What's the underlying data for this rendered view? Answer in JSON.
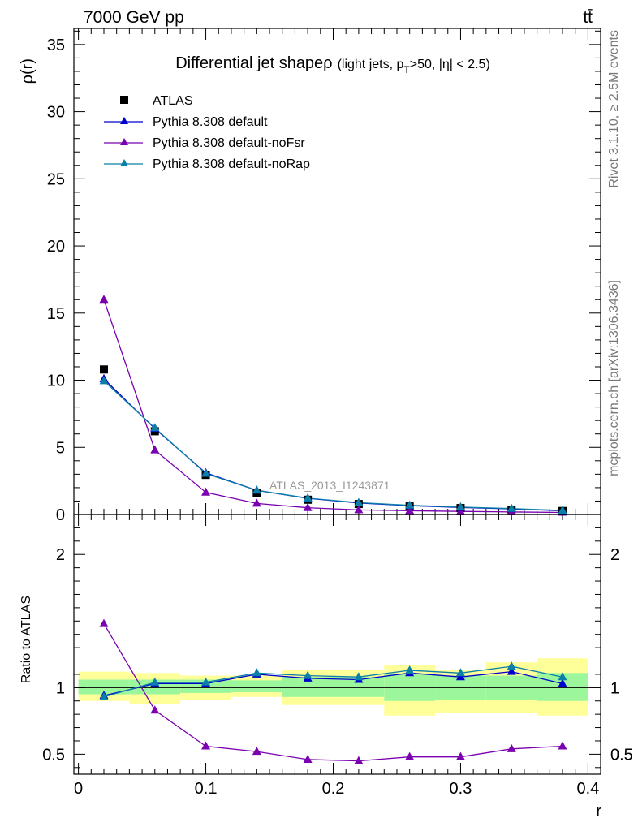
{
  "header": {
    "beam_label": "7000 GeV pp",
    "process_label": "tt̄"
  },
  "side_text": {
    "rivet": "Rivet 3.1.10, ≥ 2.5M events",
    "source": "mcplots.cern.ch [arXiv:1306.3436]"
  },
  "watermark": "ATLAS_2013_I1243871",
  "colors": {
    "atlas": "#000000",
    "default": "#0000cc",
    "noFsr": "#7a00b0",
    "noRap": "#0a7fa8",
    "band_inner": "#9cf79c",
    "band_outer": "#ffff99"
  },
  "chart_data": [
    {
      "type": "line",
      "title_main": "Differential jet shapeρ",
      "title_detail_a": "(light jets, p",
      "title_detail_sub": "T",
      "title_detail_b": ">50, |η| < 2.5)",
      "ylabel": "ρ(r)",
      "xlabel": "",
      "xlim": [
        0,
        0.4
      ],
      "ylim": [
        0,
        36.2
      ],
      "yticks": [
        0,
        5,
        10,
        15,
        20,
        25,
        30,
        35
      ],
      "ytick_labels": [
        "0",
        "5",
        "10",
        "15",
        "20",
        "25",
        "30",
        "35"
      ],
      "legend_position": "top-left",
      "x": [
        0.02,
        0.06,
        0.1,
        0.14,
        0.18,
        0.22,
        0.26,
        0.3,
        0.34,
        0.38
      ],
      "series": [
        {
          "name": "ATLAS",
          "marker": "square",
          "values": [
            10.8,
            6.2,
            2.95,
            1.6,
            1.1,
            0.78,
            0.6,
            0.48,
            0.36,
            0.26
          ]
        },
        {
          "name": "Pythia 8.308 default",
          "marker": "triangle",
          "values": [
            10.1,
            6.4,
            3.1,
            1.8,
            1.2,
            0.85,
            0.66,
            0.52,
            0.42,
            0.27
          ]
        },
        {
          "name": "Pythia 8.308 default-noFsr",
          "marker": "triangle",
          "values": [
            16.0,
            4.8,
            1.65,
            0.82,
            0.5,
            0.34,
            0.28,
            0.23,
            0.19,
            0.15
          ]
        },
        {
          "name": "Pythia 8.308 default-noRap",
          "marker": "triangle",
          "values": [
            9.95,
            6.45,
            3.05,
            1.8,
            1.22,
            0.88,
            0.68,
            0.55,
            0.44,
            0.3
          ]
        }
      ]
    },
    {
      "type": "line",
      "ylabel": "Ratio to ATLAS",
      "xlabel": "r",
      "xlim": [
        0,
        0.4
      ],
      "ylim": [
        0.35,
        2.3
      ],
      "xticks": [
        0,
        0.1,
        0.2,
        0.3,
        0.4
      ],
      "xtick_labels": [
        "0",
        "0.1",
        "0.2",
        "0.3",
        "0.4"
      ],
      "yticks": [
        0.5,
        1,
        2
      ],
      "ytick_labels": [
        "0.5",
        "1",
        "2"
      ],
      "x": [
        0.02,
        0.06,
        0.1,
        0.14,
        0.18,
        0.22,
        0.26,
        0.3,
        0.34,
        0.38
      ],
      "bins": [
        [
          0,
          0.04
        ],
        [
          0.04,
          0.08
        ],
        [
          0.08,
          0.12
        ],
        [
          0.12,
          0.16
        ],
        [
          0.16,
          0.2
        ],
        [
          0.2,
          0.24
        ],
        [
          0.24,
          0.28
        ],
        [
          0.28,
          0.32
        ],
        [
          0.32,
          0.36
        ],
        [
          0.36,
          0.4
        ]
      ],
      "band_inner": [
        [
          0.95,
          1.06
        ],
        [
          0.95,
          1.06
        ],
        [
          0.96,
          1.06
        ],
        [
          0.965,
          1.055
        ],
        [
          0.93,
          1.08
        ],
        [
          0.93,
          1.08
        ],
        [
          0.9,
          1.1
        ],
        [
          0.91,
          1.09
        ],
        [
          0.91,
          1.09
        ],
        [
          0.9,
          1.11
        ]
      ],
      "band_outer": [
        [
          0.9,
          1.12
        ],
        [
          0.88,
          1.11
        ],
        [
          0.91,
          1.09
        ],
        [
          0.93,
          1.09
        ],
        [
          0.87,
          1.13
        ],
        [
          0.87,
          1.13
        ],
        [
          0.79,
          1.17
        ],
        [
          0.81,
          1.13
        ],
        [
          0.81,
          1.19
        ],
        [
          0.79,
          1.22
        ]
      ],
      "series": [
        {
          "name": "Pythia 8.308 default",
          "values": [
            0.94,
            1.03,
            1.03,
            1.1,
            1.07,
            1.06,
            1.11,
            1.08,
            1.12,
            1.03
          ]
        },
        {
          "name": "Pythia 8.308 default-noFsr",
          "values": [
            1.48,
            0.83,
            0.56,
            0.52,
            0.46,
            0.45,
            0.48,
            0.48,
            0.54,
            0.56
          ]
        },
        {
          "name": "Pythia 8.308 default-noRap",
          "values": [
            0.93,
            1.04,
            1.04,
            1.11,
            1.09,
            1.08,
            1.13,
            1.11,
            1.16,
            1.08
          ]
        }
      ]
    }
  ]
}
